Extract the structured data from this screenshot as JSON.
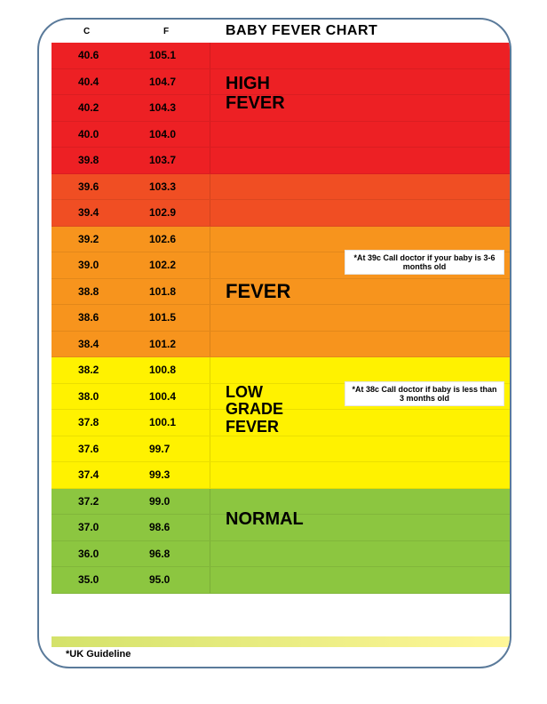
{
  "title": "BABY FEVER CHART",
  "columns": {
    "c": "C",
    "f": "F"
  },
  "footer": "*UK Guideline",
  "zones": [
    {
      "name": "high-fever",
      "label": "HIGH FEVER",
      "label_fontsize": 20,
      "rows": [
        {
          "c": "40.6",
          "f": "105.1",
          "color": "#ed2024"
        },
        {
          "c": "40.4",
          "f": "104.7",
          "color": "#ed2024"
        },
        {
          "c": "40.2",
          "f": "104.3",
          "color": "#ed2024"
        },
        {
          "c": "40.0",
          "f": "104.0",
          "color": "#ed2024"
        },
        {
          "c": "39.8",
          "f": "103.7",
          "color": "#ed2024"
        },
        {
          "c": "39.6",
          "f": "103.3",
          "color": "#f04e23"
        },
        {
          "c": "39.4",
          "f": "102.9",
          "color": "#f04e23"
        }
      ]
    },
    {
      "name": "fever",
      "label": "FEVER",
      "label_fontsize": 22,
      "note": "*At 39c Call doctor if your baby is 3-6 months old",
      "rows": [
        {
          "c": "39.2",
          "f": "102.6",
          "color": "#f7941d"
        },
        {
          "c": "39.0",
          "f": "102.2",
          "color": "#f7941d"
        },
        {
          "c": "38.8",
          "f": "101.8",
          "color": "#f7941d"
        },
        {
          "c": "38.6",
          "f": "101.5",
          "color": "#f7941d"
        },
        {
          "c": "38.4",
          "f": "101.2",
          "color": "#f7941d"
        }
      ]
    },
    {
      "name": "low-grade-fever",
      "label": "LOW GRADE FEVER",
      "label_fontsize": 18,
      "note": "*At 38c Call doctor if baby is less than 3 months old",
      "rows": [
        {
          "c": "38.2",
          "f": "100.8",
          "color": "#fff200"
        },
        {
          "c": "38.0",
          "f": "100.4",
          "color": "#fff200"
        },
        {
          "c": "37.8",
          "f": "100.1",
          "color": "#fff200"
        },
        {
          "c": "37.6",
          "f": "99.7",
          "color": "#fff200"
        },
        {
          "c": "37.4",
          "f": "99.3",
          "color": "#fff200"
        }
      ]
    },
    {
      "name": "normal",
      "label": "NORMAL",
      "label_fontsize": 20,
      "rows": [
        {
          "c": "37.2",
          "f": "99.0",
          "color": "#8cc640"
        },
        {
          "c": "37.0",
          "f": "98.6",
          "color": "#8cc640"
        },
        {
          "c": "36.0",
          "f": "96.8",
          "color": "#8cc640"
        },
        {
          "c": "35.0",
          "f": "95.0",
          "color": "#8cc640"
        }
      ]
    }
  ],
  "bottom_gradient": [
    "#d4e26a",
    "#fff799"
  ],
  "row_height": 29.5
}
